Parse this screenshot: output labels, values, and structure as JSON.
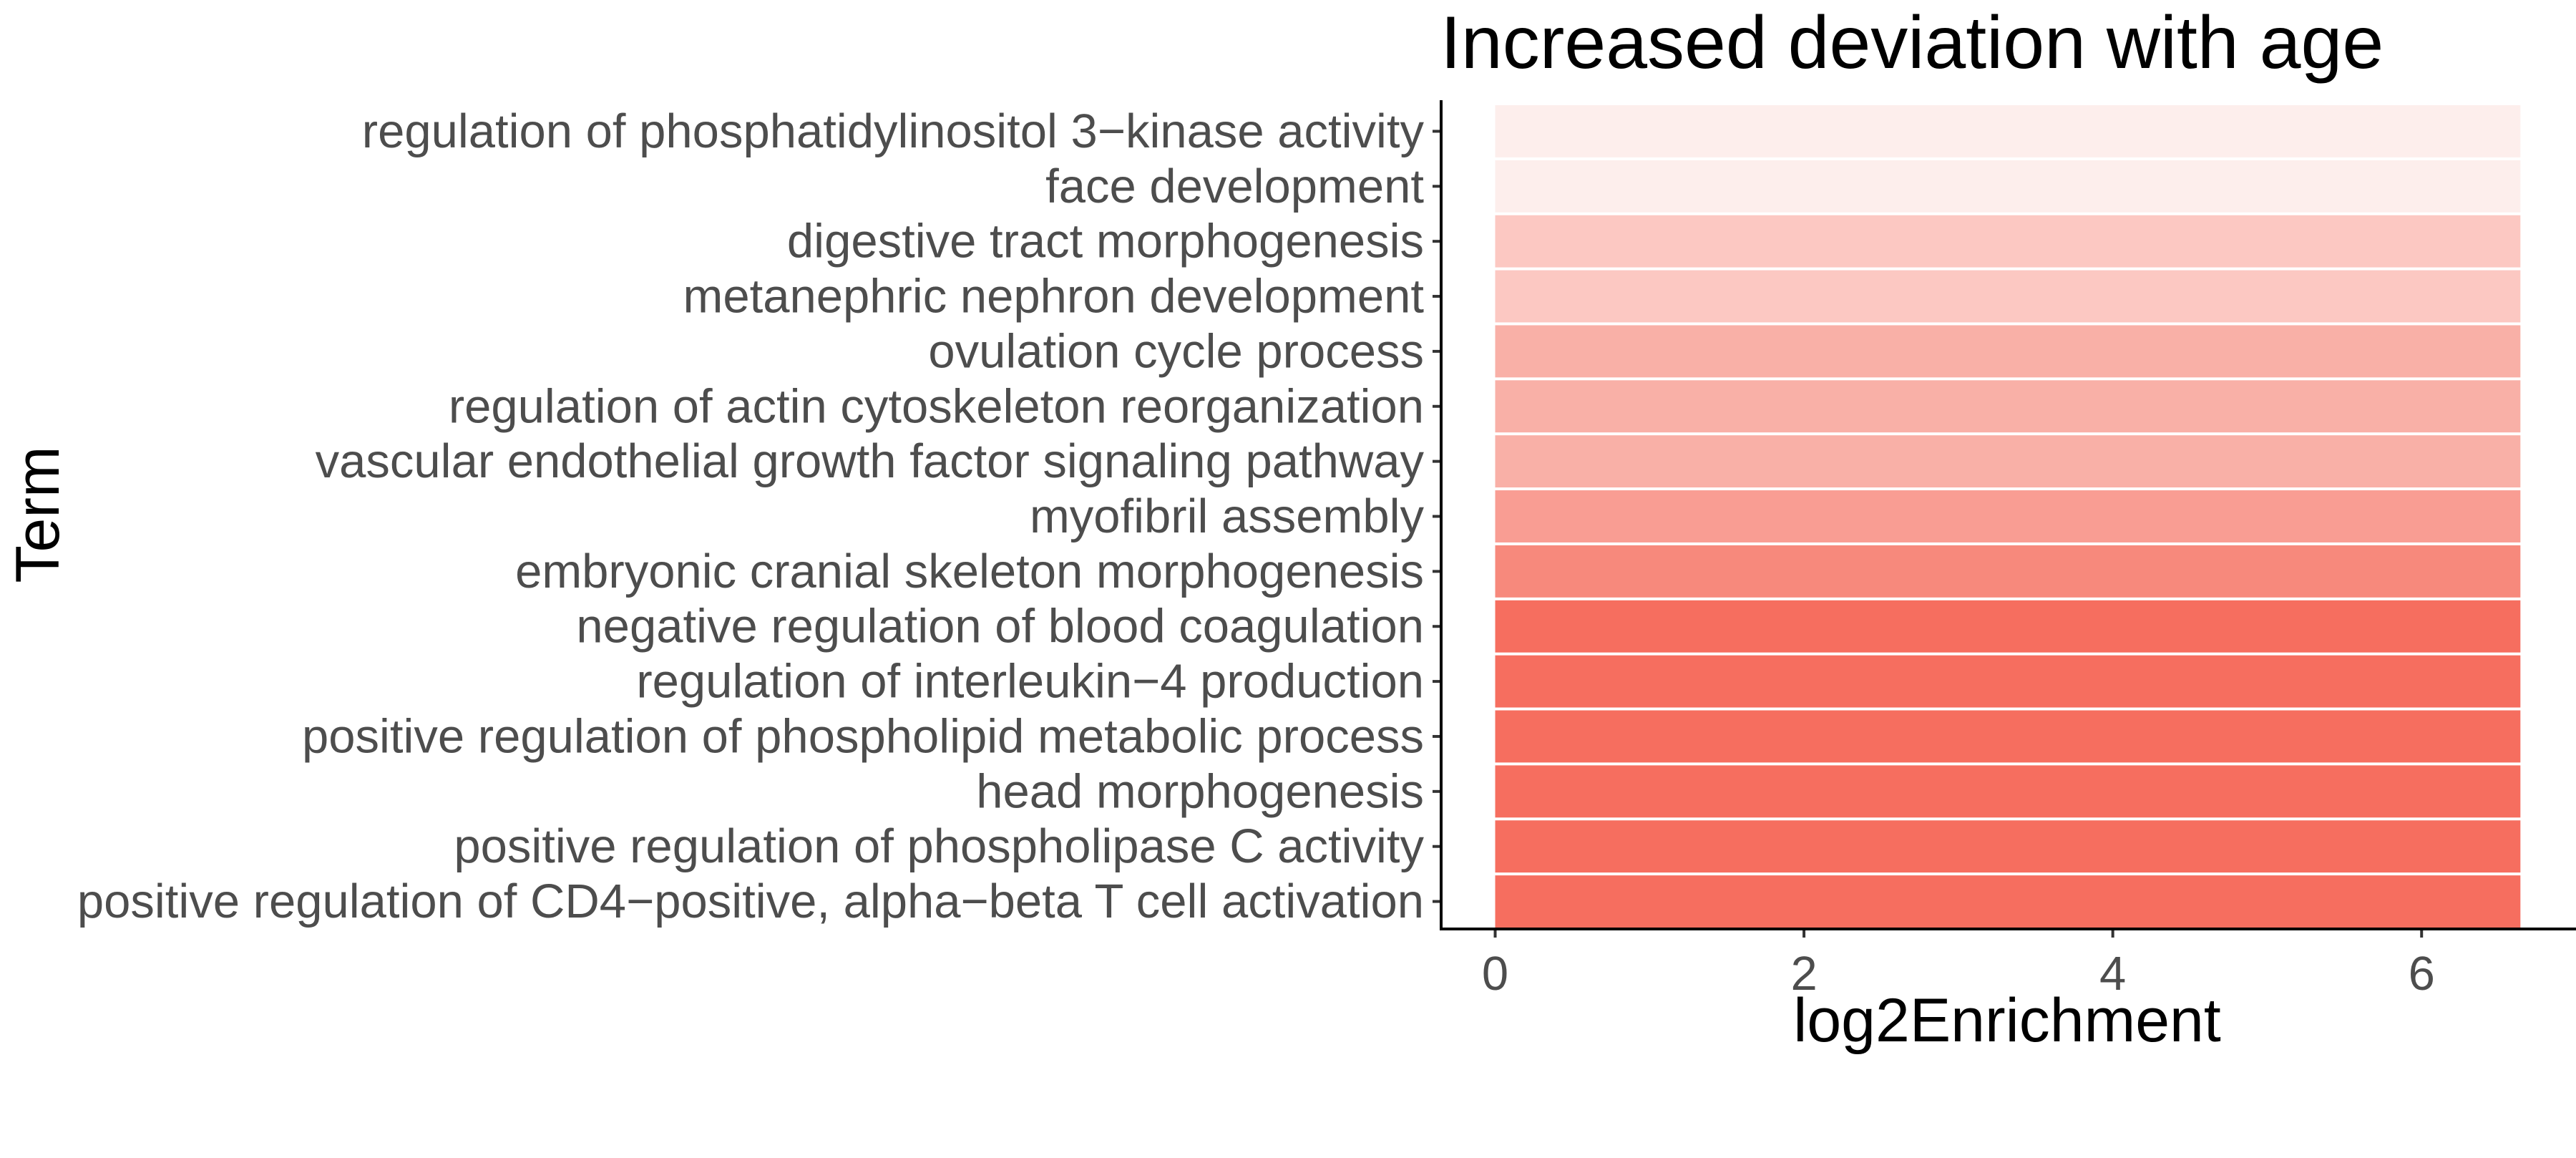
{
  "chart_data": {
    "type": "bar",
    "orientation": "horizontal",
    "title": "Increased deviation with age",
    "xlabel": "log2Enrichment",
    "ylabel": "Term",
    "xlim": [
      -0.35,
      7.0
    ],
    "x_ticks": [
      0,
      2,
      4,
      6
    ],
    "grid": false,
    "legend": "none",
    "categories": [
      "regulation of phosphatidylinositol 3−kinase activity",
      "face development",
      "digestive tract morphogenesis",
      "metanephric nephron development",
      "ovulation cycle process",
      "regulation of actin cytoskeleton reorganization",
      "vascular endothelial growth factor signaling pathway",
      "myofibril assembly",
      "embryonic cranial skeleton morphogenesis",
      "negative regulation of blood coagulation",
      "regulation of interleukin−4 production",
      "positive regulation of phospholipid metabolic process",
      "head morphogenesis",
      "positive regulation of phospholipase C activity",
      "positive regulation of CD4−positive, alpha−beta T cell activation"
    ],
    "values": [
      6.64,
      6.64,
      6.64,
      6.64,
      6.64,
      6.64,
      6.64,
      6.64,
      6.64,
      6.64,
      6.64,
      6.64,
      6.64,
      6.64,
      6.64
    ],
    "bar_colors": [
      "#fdeeec",
      "#fdeeec",
      "#fcc8c2",
      "#fcc8c2",
      "#f9b0a7",
      "#f9b0a7",
      "#f9b0a7",
      "#f99d93",
      "#f7897c",
      "#f66e5f",
      "#f66e5f",
      "#f66e5f",
      "#f66e5f",
      "#f66e5f",
      "#f66e5f"
    ]
  }
}
